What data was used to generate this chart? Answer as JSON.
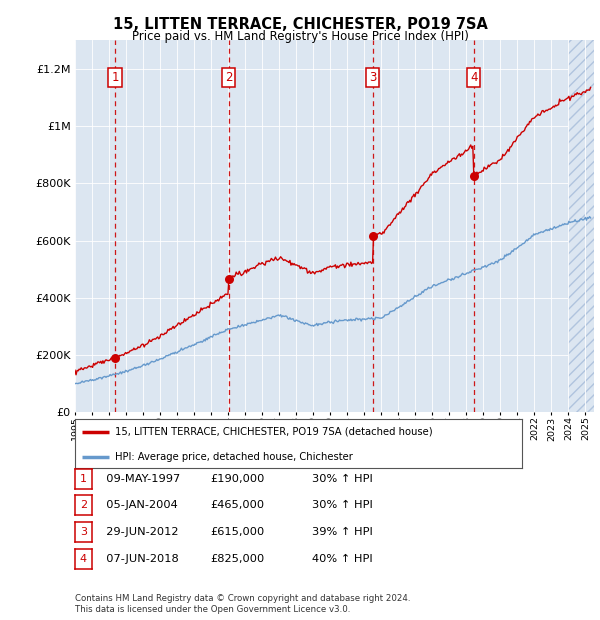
{
  "title": "15, LITTEN TERRACE, CHICHESTER, PO19 7SA",
  "subtitle": "Price paid vs. HM Land Registry's House Price Index (HPI)",
  "bg_color": "#dce6f1",
  "plot_bg_color": "#dce6f1",
  "hpi_color": "#6699cc",
  "sale_color": "#cc0000",
  "vline_color": "#cc0000",
  "ylim": [
    0,
    1300000
  ],
  "yticks": [
    0,
    200000,
    400000,
    600000,
    800000,
    1000000,
    1200000
  ],
  "ytick_labels": [
    "£0",
    "£200K",
    "£400K",
    "£600K",
    "£800K",
    "£1M",
    "£1.2M"
  ],
  "sale_events": [
    {
      "label": "1",
      "date_x": 1997.36,
      "price": 190000,
      "date_str": "09-MAY-1997",
      "price_str": "£190,000",
      "hpi_str": "30% ↑ HPI"
    },
    {
      "label": "2",
      "date_x": 2004.03,
      "price": 465000,
      "date_str": "05-JAN-2004",
      "price_str": "£465,000",
      "hpi_str": "30% ↑ HPI"
    },
    {
      "label": "3",
      "date_x": 2012.49,
      "price": 615000,
      "date_str": "29-JUN-2012",
      "price_str": "£615,000",
      "hpi_str": "39% ↑ HPI"
    },
    {
      "label": "4",
      "date_x": 2018.43,
      "price": 825000,
      "date_str": "07-JUN-2018",
      "price_str": "£825,000",
      "hpi_str": "40% ↑ HPI"
    }
  ],
  "legend_sale_label": "15, LITTEN TERRACE, CHICHESTER, PO19 7SA (detached house)",
  "legend_hpi_label": "HPI: Average price, detached house, Chichester",
  "footnote": "Contains HM Land Registry data © Crown copyright and database right 2024.\nThis data is licensed under the Open Government Licence v3.0.",
  "xmin": 1995,
  "xmax": 2025.5,
  "hatch_start": 2024.0
}
